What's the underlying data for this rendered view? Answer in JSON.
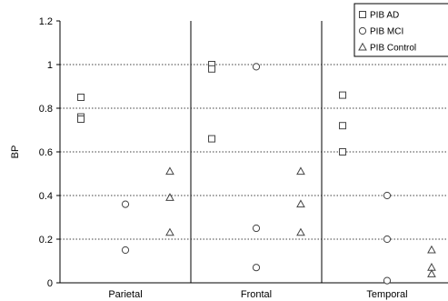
{
  "chart_data": {
    "type": "scatter",
    "categories": [
      "Parietal",
      "Frontal",
      "Temporal"
    ],
    "ylabel": "BP",
    "ylim": [
      0,
      1.2
    ],
    "yticks": [
      "0",
      "0.2",
      "0.4",
      "0.6",
      "0.8",
      "1",
      "1.2"
    ],
    "grid": "horizontal-dotted",
    "legend_position": "top-right",
    "series": [
      {
        "name": "PIB AD",
        "marker": "square",
        "points": [
          {
            "category": "Parietal",
            "y": 0.85
          },
          {
            "category": "Parietal",
            "y": 0.76
          },
          {
            "category": "Parietal",
            "y": 0.75
          },
          {
            "category": "Frontal",
            "y": 1.0
          },
          {
            "category": "Frontal",
            "y": 0.98
          },
          {
            "category": "Frontal",
            "y": 0.66
          },
          {
            "category": "Temporal",
            "y": 0.86
          },
          {
            "category": "Temporal",
            "y": 0.72
          },
          {
            "category": "Temporal",
            "y": 0.6
          }
        ]
      },
      {
        "name": "PIB MCI",
        "marker": "circle",
        "points": [
          {
            "category": "Parietal",
            "y": 0.36
          },
          {
            "category": "Parietal",
            "y": 0.15
          },
          {
            "category": "Frontal",
            "y": 0.99
          },
          {
            "category": "Frontal",
            "y": 0.25
          },
          {
            "category": "Frontal",
            "y": 0.07
          },
          {
            "category": "Temporal",
            "y": 0.4
          },
          {
            "category": "Temporal",
            "y": 0.2
          },
          {
            "category": "Temporal",
            "y": 0.01
          }
        ]
      },
      {
        "name": "PIB Control",
        "marker": "triangle",
        "points": [
          {
            "category": "Parietal",
            "y": 0.51
          },
          {
            "category": "Parietal",
            "y": 0.39
          },
          {
            "category": "Parietal",
            "y": 0.23
          },
          {
            "category": "Frontal",
            "y": 0.51
          },
          {
            "category": "Frontal",
            "y": 0.36
          },
          {
            "category": "Frontal",
            "y": 0.23
          },
          {
            "category": "Temporal",
            "y": 0.15
          },
          {
            "category": "Temporal",
            "y": 0.07
          },
          {
            "category": "Temporal",
            "y": 0.04
          }
        ]
      }
    ]
  }
}
